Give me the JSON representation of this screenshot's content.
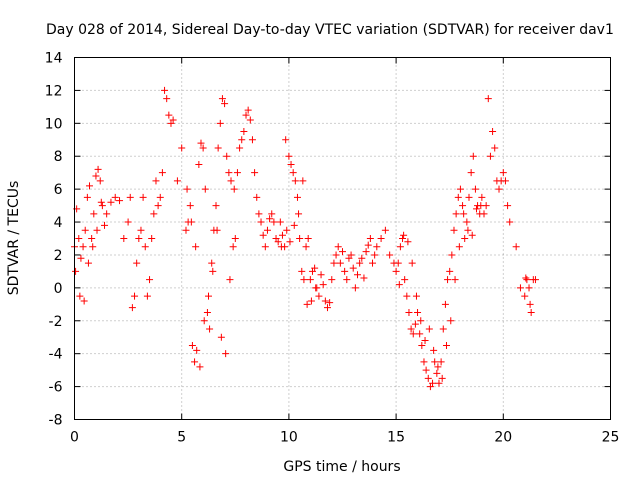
{
  "chart_data": {
    "type": "scatter",
    "title": "Day 028 of 2014, Sidereal Day-to-day VTEC variation (SDTVAR) for receiver dav1",
    "xlabel": "GPS time / hours",
    "ylabel": "SDTVAR / TECUs",
    "xlim": [
      0,
      25
    ],
    "ylim": [
      -8,
      14
    ],
    "xticks": [
      0,
      5,
      10,
      15,
      20,
      25
    ],
    "yticks": [
      -8,
      -6,
      -4,
      -2,
      0,
      2,
      4,
      6,
      8,
      10,
      12,
      14
    ],
    "grid": true,
    "marker": "plus",
    "color": "#ff0000",
    "series": [
      {
        "name": "SDTVAR",
        "x": [
          0.0,
          0.1,
          0.2,
          0.3,
          0.4,
          0.5,
          0.6,
          0.7,
          0.8,
          0.9,
          1.0,
          1.1,
          1.2,
          1.3,
          1.4,
          1.5,
          1.7,
          1.9,
          2.1,
          2.3,
          2.5,
          2.6,
          2.7,
          2.8,
          2.9,
          3.0,
          3.1,
          3.2,
          3.3,
          3.4,
          3.5,
          3.6,
          3.7,
          3.8,
          3.9,
          4.0,
          4.1,
          4.2,
          4.3,
          4.4,
          4.5,
          4.6,
          4.8,
          5.0,
          5.2,
          5.3,
          5.4,
          5.5,
          5.6,
          5.7,
          5.8,
          5.9,
          6.0,
          6.1,
          6.2,
          6.3,
          6.4,
          6.5,
          6.6,
          6.7,
          6.8,
          6.9,
          7.0,
          7.1,
          7.2,
          7.3,
          7.4,
          7.5,
          7.6,
          7.7,
          7.8,
          7.9,
          8.0,
          8.1,
          8.2,
          8.3,
          8.4,
          8.5,
          8.6,
          8.7,
          8.8,
          8.9,
          9.0,
          9.1,
          9.2,
          9.3,
          9.4,
          9.5,
          9.6,
          9.7,
          9.8,
          9.9,
          10.0,
          10.1,
          10.2,
          10.3,
          10.4,
          10.5,
          10.6,
          10.7,
          10.8,
          10.9,
          11.0,
          11.1,
          11.2,
          11.3,
          11.4,
          11.5,
          11.6,
          11.7,
          11.8,
          11.9,
          12.0,
          12.1,
          12.2,
          12.3,
          12.4,
          12.5,
          12.6,
          12.7,
          12.8,
          12.9,
          13.0,
          13.1,
          13.2,
          13.3,
          13.4,
          13.5,
          13.6,
          13.7,
          13.8,
          13.9,
          14.0,
          14.1,
          14.3,
          14.5,
          14.7,
          14.9,
          15.0,
          15.1,
          15.2,
          15.3,
          15.4,
          15.5,
          15.6,
          15.7,
          15.8,
          15.9,
          16.0,
          16.1,
          16.2,
          16.3,
          16.4,
          16.5,
          16.6,
          16.7,
          16.8,
          16.9,
          17.0,
          17.1,
          17.2,
          17.3,
          17.4,
          17.5,
          17.6,
          17.7,
          17.8,
          17.9,
          18.0,
          18.1,
          18.2,
          18.3,
          18.4,
          18.5,
          18.6,
          18.7,
          18.8,
          18.9,
          19.0,
          19.1,
          19.2,
          19.3,
          19.4,
          19.5,
          19.6,
          19.7,
          19.8,
          19.9,
          20.0,
          20.1,
          20.2,
          20.3,
          20.6,
          20.8,
          21.0,
          21.1,
          21.2,
          21.3,
          21.4,
          21.5,
          0.05,
          0.25,
          0.45,
          0.65,
          0.85,
          1.05,
          1.25,
          5.25,
          5.45,
          5.65,
          5.85,
          6.05,
          6.25,
          6.45,
          6.65,
          6.85,
          7.05,
          7.25,
          7.45,
          9.65,
          9.85,
          10.05,
          10.25,
          10.45,
          10.65,
          10.85,
          11.05,
          11.25,
          15.15,
          15.35,
          15.55,
          15.75,
          15.95,
          16.15,
          16.35,
          16.55,
          16.75,
          16.95,
          17.15,
          17.35,
          17.55,
          17.75,
          17.95,
          18.15,
          18.35,
          18.55,
          18.75,
          18.95,
          21.05,
          21.25
        ],
        "y": [
          2.5,
          4.8,
          3.0,
          1.8,
          2.5,
          3.5,
          5.5,
          6.2,
          3.0,
          4.5,
          6.8,
          7.2,
          6.5,
          5.0,
          3.8,
          4.5,
          5.2,
          5.5,
          5.3,
          3.0,
          4.0,
          5.5,
          -1.2,
          -0.5,
          1.5,
          3.0,
          3.5,
          5.5,
          2.5,
          -0.5,
          0.5,
          3.0,
          4.5,
          6.5,
          5.0,
          5.5,
          7.0,
          12.0,
          11.5,
          10.5,
          10.0,
          10.2,
          6.5,
          8.5,
          3.5,
          4.0,
          5.0,
          -3.5,
          -4.5,
          -3.8,
          7.5,
          8.8,
          8.5,
          6.0,
          -1.5,
          -2.5,
          1.5,
          3.5,
          5.0,
          8.5,
          10.0,
          11.5,
          11.2,
          8.0,
          7.0,
          6.5,
          2.5,
          3.0,
          7.0,
          8.5,
          9.0,
          9.5,
          10.5,
          10.8,
          10.2,
          9.0,
          7.0,
          5.5,
          4.5,
          4.0,
          3.2,
          2.5,
          3.5,
          4.2,
          4.5,
          4.0,
          3.0,
          2.8,
          4.0,
          3.2,
          2.5,
          3.5,
          8.0,
          7.5,
          7.0,
          6.5,
          5.5,
          3.0,
          1.0,
          0.5,
          2.5,
          3.0,
          0.5,
          1.0,
          1.2,
          0.0,
          -0.5,
          0.8,
          0.2,
          -0.8,
          -1.2,
          -0.9,
          0.5,
          1.5,
          2.0,
          2.5,
          1.5,
          2.2,
          1.0,
          0.5,
          1.8,
          2.0,
          1.2,
          0.0,
          0.8,
          1.5,
          1.8,
          0.6,
          2.2,
          2.6,
          3.0,
          1.5,
          2.0,
          2.5,
          3.0,
          3.5,
          2.0,
          1.5,
          1.0,
          1.5,
          2.5,
          3.0,
          0.5,
          -0.5,
          -1.5,
          -2.5,
          -2.8,
          -2.2,
          -1.5,
          -2.8,
          -3.5,
          -4.5,
          -5.0,
          -5.5,
          -6.0,
          -5.8,
          -4.5,
          -5.2,
          -5.8,
          -4.5,
          -2.5,
          -1.0,
          0.5,
          1.0,
          2.0,
          3.5,
          4.5,
          5.5,
          6.0,
          5.0,
          3.0,
          4.0,
          5.5,
          7.0,
          8.0,
          6.0,
          5.0,
          4.5,
          5.5,
          4.5,
          5.0,
          11.5,
          8.0,
          9.5,
          8.5,
          6.5,
          6.0,
          6.5,
          7.0,
          6.5,
          5.0,
          4.0,
          2.5,
          0.0,
          -0.5,
          0.5,
          0.0,
          -1.5,
          0.5,
          0.5,
          1.0,
          -0.5,
          -0.8,
          1.5,
          2.5,
          3.5,
          5.2,
          6.0,
          4.0,
          2.5,
          -4.8,
          -2.0,
          -0.5,
          1.0,
          3.5,
          -3.0,
          -4.0,
          0.5,
          6.0,
          2.5,
          9.0,
          2.8,
          3.8,
          4.5,
          6.5,
          -1.0,
          -0.8,
          0.0,
          0.2,
          3.2,
          2.8,
          1.5,
          -0.5,
          -2.0,
          -3.2,
          -2.5,
          -3.8,
          -4.8,
          -5.5,
          -3.5,
          -2.0,
          0.5,
          2.5,
          4.5,
          3.5,
          3.2,
          4.8,
          5.0,
          0.6,
          -1.0
        ]
      }
    ]
  }
}
